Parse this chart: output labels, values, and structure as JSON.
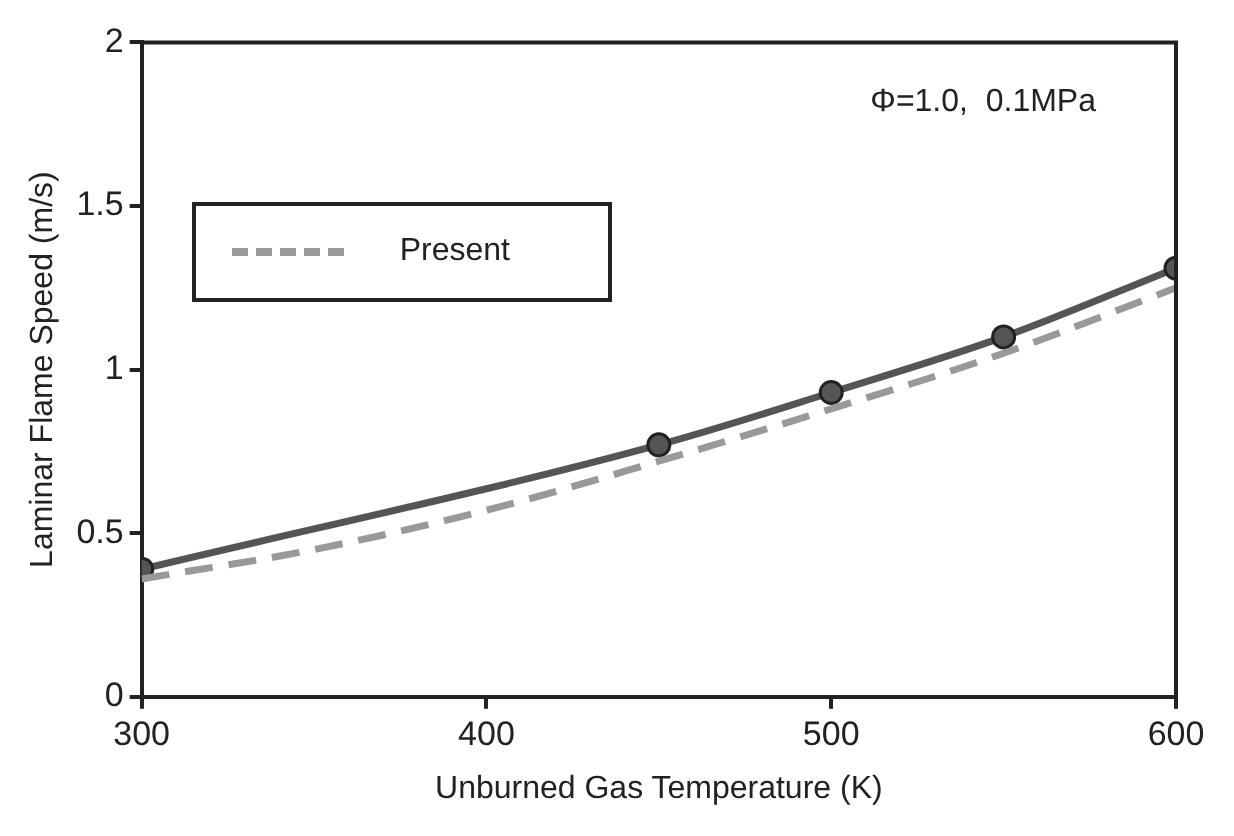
{
  "chart_data": {
    "type": "line",
    "xlabel": "Unburned Gas Temperature (K)",
    "ylabel": "Laminar Flame Speed (m/s)",
    "annotations": [
      "Φ=1.0,  0.1MPa"
    ],
    "series": [
      {
        "name": "Present",
        "color": "#999999",
        "line_style": "dashed",
        "marker": "none",
        "x": [
          300,
          350,
          400,
          450,
          500,
          550,
          600
        ],
        "values": [
          0.36,
          0.45,
          0.57,
          0.72,
          0.88,
          1.05,
          1.25
        ]
      },
      {
        "color": "#555555",
        "line_style": "solid",
        "marker": "circle",
        "x": [
          300,
          450,
          500,
          550,
          600
        ],
        "values": [
          0.39,
          0.77,
          0.93,
          1.1,
          1.31
        ]
      }
    ],
    "xlim": [
      300,
      600
    ],
    "xticks": [
      300,
      400,
      500,
      600
    ],
    "ylim": [
      0,
      2
    ],
    "yticks": [
      0,
      0.5,
      1,
      1.5,
      2
    ],
    "grid": false,
    "legend": "top left"
  }
}
